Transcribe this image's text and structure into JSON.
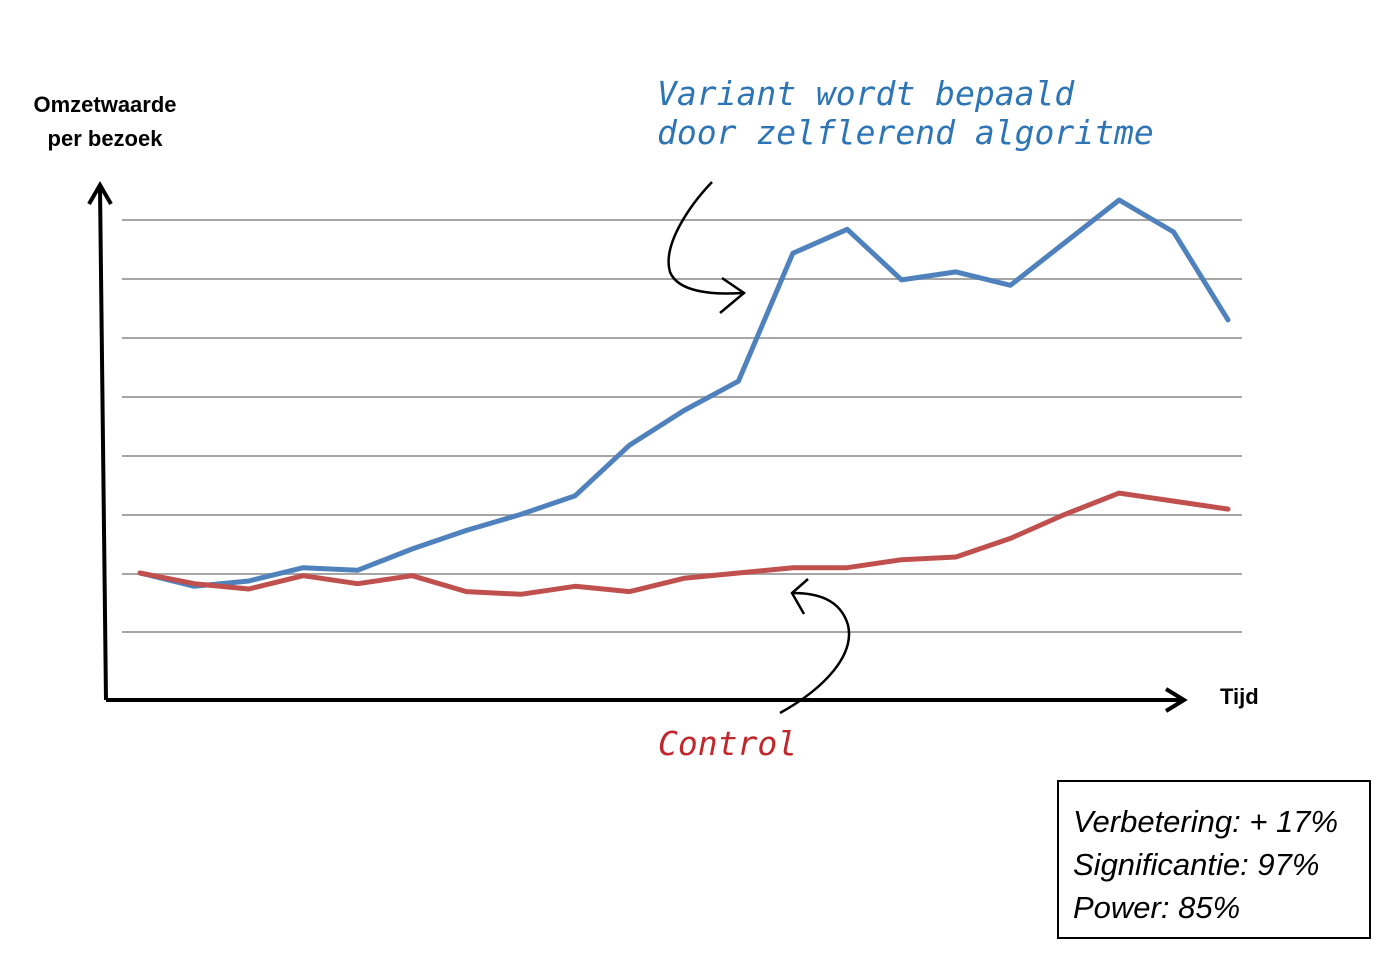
{
  "chart_data": {
    "type": "line",
    "xlabel": "Tijd",
    "ylabel_lines": [
      "Omzetwaarde",
      "per bezoek"
    ],
    "x": [
      1,
      2,
      3,
      4,
      5,
      6,
      7,
      8,
      9,
      10,
      11,
      12,
      13,
      14,
      15,
      16,
      17,
      18,
      19,
      20,
      21
    ],
    "ylim": [
      0,
      8
    ],
    "grid": true,
    "series": [
      {
        "color": "#4F81BD",
        "values": [
          1.0,
          0.75,
          0.85,
          1.1,
          1.05,
          1.45,
          1.8,
          2.1,
          2.45,
          3.4,
          4.05,
          4.6,
          7.0,
          7.45,
          6.5,
          6.65,
          6.4,
          7.2,
          8.0,
          7.4,
          5.75
        ]
      },
      {
        "color": "#C0504D",
        "values": [
          1.0,
          0.8,
          0.7,
          0.95,
          0.8,
          0.95,
          0.65,
          0.6,
          0.75,
          0.65,
          0.9,
          1.0,
          1.1,
          1.1,
          1.25,
          1.3,
          1.65,
          2.1,
          2.5,
          2.35,
          2.2
        ]
      }
    ],
    "annotations": {
      "variant_lines": [
        "Variant wordt bepaald",
        "door zelflerend algoritme"
      ],
      "control": "Control"
    }
  },
  "stats": {
    "improvement": "Verbetering: + 17%",
    "significance": "Significantie: 97%",
    "power": "Power: 85%"
  },
  "colors": {
    "variant_text": "#2E75B6",
    "control_text": "#C0282D",
    "grid": "#A6A6A6"
  }
}
